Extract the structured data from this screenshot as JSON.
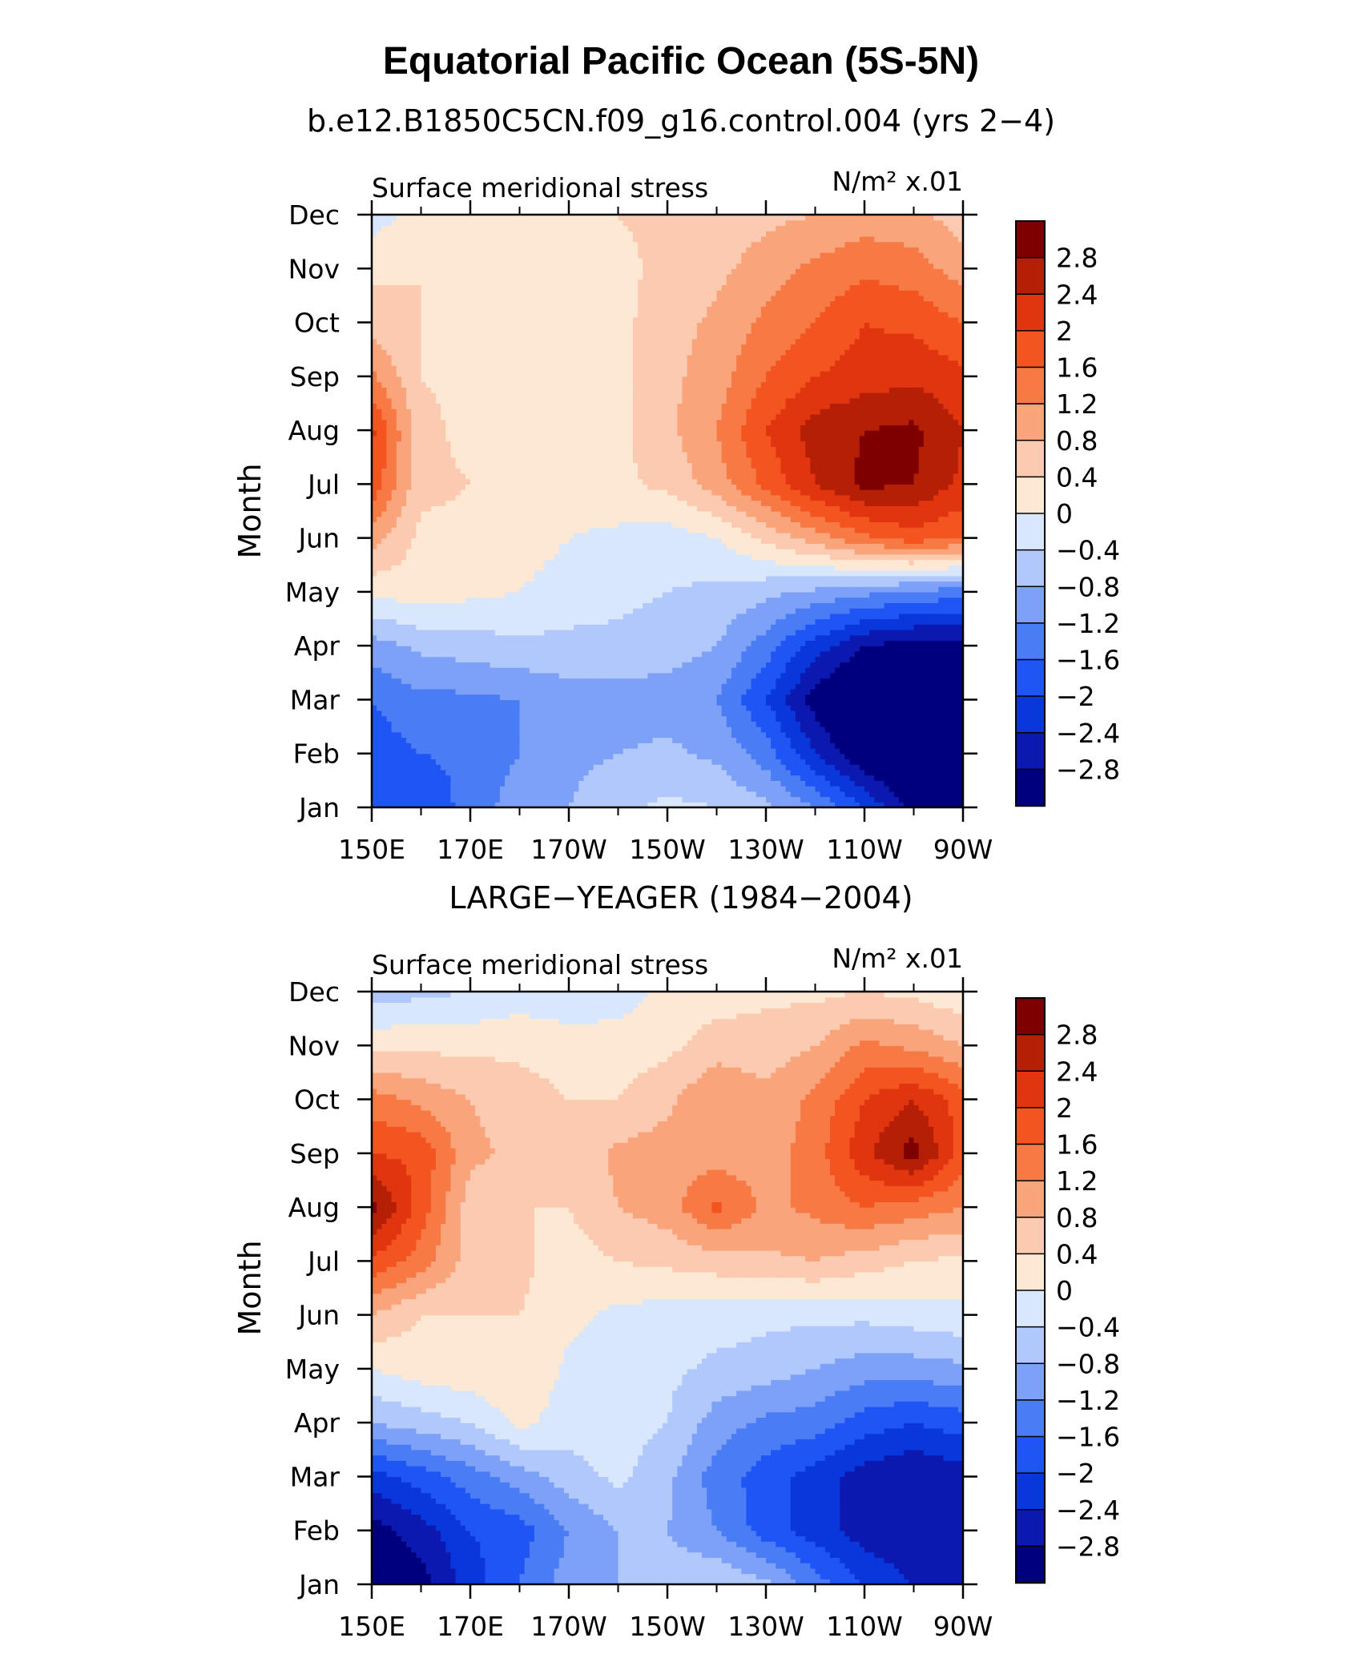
{
  "title": "Equatorial Pacific Ocean (5S-5N)",
  "chart_data": [
    {
      "type": "heatmap",
      "subtitle": "b.e12.B1850C5CN.f09_g16.control.004 (yrs 2−4)",
      "variable": "Surface meridional stress",
      "units": "N/m² x.01",
      "xlabel": "",
      "ylabel": "Month",
      "x_ticks": [
        "150E",
        "170E",
        "170W",
        "150W",
        "130W",
        "110W",
        "90W"
      ],
      "y_ticks": [
        "Jan",
        "Feb",
        "Mar",
        "Apr",
        "May",
        "Jun",
        "Jul",
        "Aug",
        "Sep",
        "Oct",
        "Nov",
        "Dec"
      ],
      "x_values": [
        150,
        160,
        170,
        180,
        190,
        200,
        210,
        220,
        230,
        240,
        250,
        260,
        270
      ],
      "xlim": [
        150,
        270
      ],
      "ylim": [
        1,
        12
      ],
      "values": [
        [
          -1.6,
          -2.0,
          -1.4,
          -1.0,
          -0.8,
          -0.5,
          -0.3,
          -0.4,
          -0.7,
          -1.2,
          -2.0,
          -3.0,
          -3.4
        ],
        [
          -1.8,
          -1.6,
          -1.5,
          -1.2,
          -0.9,
          -0.8,
          -0.7,
          -0.9,
          -1.4,
          -2.4,
          -3.2,
          -3.6,
          -3.6
        ],
        [
          -1.6,
          -1.3,
          -1.3,
          -1.2,
          -1.0,
          -1.0,
          -1.0,
          -1.2,
          -2.0,
          -3.0,
          -3.6,
          -3.8,
          -3.8
        ],
        [
          -1.0,
          -0.7,
          -0.6,
          -0.5,
          -0.5,
          -0.5,
          -0.6,
          -0.8,
          -1.4,
          -2.2,
          -2.8,
          -3.0,
          -3.0
        ],
        [
          0.1,
          0.2,
          0.1,
          0.0,
          -0.2,
          -0.3,
          -0.4,
          -0.5,
          -0.7,
          -0.9,
          -1.1,
          -1.3,
          -1.4
        ],
        [
          1.0,
          0.3,
          0.3,
          0.2,
          0.0,
          -0.1,
          -0.2,
          0.0,
          0.5,
          1.0,
          1.5,
          1.8,
          1.6
        ],
        [
          1.9,
          0.5,
          0.4,
          0.3,
          0.2,
          0.3,
          0.5,
          1.0,
          1.7,
          2.4,
          2.9,
          2.8,
          2.3
        ],
        [
          2.1,
          0.5,
          0.3,
          0.2,
          0.1,
          0.3,
          0.7,
          1.2,
          2.0,
          2.6,
          2.8,
          2.9,
          2.4
        ],
        [
          1.3,
          0.4,
          0.3,
          0.2,
          0.1,
          0.3,
          0.7,
          1.0,
          1.6,
          2.0,
          2.2,
          2.3,
          2.1
        ],
        [
          0.6,
          0.4,
          0.3,
          0.1,
          0.1,
          0.3,
          0.6,
          0.9,
          1.3,
          1.6,
          2.0,
          1.9,
          1.6
        ],
        [
          0.3,
          0.4,
          0.3,
          0.1,
          0.0,
          0.3,
          0.5,
          0.7,
          1.0,
          1.3,
          1.5,
          1.4,
          1.0
        ],
        [
          -0.2,
          0.2,
          0.2,
          0.1,
          0.0,
          0.4,
          0.5,
          0.5,
          0.7,
          0.8,
          1.0,
          0.9,
          0.6
        ]
      ]
    },
    {
      "type": "heatmap",
      "subtitle": "LARGE−YEAGER (1984−2004)",
      "variable": "Surface meridional stress",
      "units": "N/m² x.01",
      "xlabel": "",
      "ylabel": "Month",
      "x_ticks": [
        "150E",
        "170E",
        "170W",
        "150W",
        "130W",
        "110W",
        "90W"
      ],
      "y_ticks": [
        "Jan",
        "Feb",
        "Mar",
        "Apr",
        "May",
        "Jun",
        "Jul",
        "Aug",
        "Sep",
        "Oct",
        "Nov",
        "Dec"
      ],
      "x_values": [
        150,
        160,
        170,
        180,
        190,
        200,
        210,
        220,
        230,
        240,
        250,
        260,
        270
      ],
      "xlim": [
        150,
        270
      ],
      "ylim": [
        1,
        12
      ],
      "values": [
        [
          -3.2,
          -3.0,
          -2.2,
          -1.6,
          -1.0,
          -0.8,
          -0.6,
          -0.4,
          -0.7,
          -1.4,
          -2.0,
          -2.4,
          -2.4
        ],
        [
          -3.0,
          -2.6,
          -2.0,
          -1.8,
          -1.2,
          -0.8,
          -0.8,
          -1.2,
          -1.8,
          -2.2,
          -2.6,
          -2.8,
          -2.6
        ],
        [
          -2.2,
          -1.8,
          -1.4,
          -1.0,
          -0.6,
          -0.3,
          -0.7,
          -1.4,
          -1.8,
          -2.2,
          -2.6,
          -2.8,
          -2.6
        ],
        [
          -0.8,
          -0.6,
          -0.4,
          0.1,
          -0.2,
          -0.2,
          -0.4,
          -1.0,
          -1.3,
          -1.4,
          -1.8,
          -2.0,
          -1.8
        ],
        [
          0.0,
          0.2,
          0.3,
          0.4,
          -0.1,
          -0.1,
          -0.3,
          -0.5,
          -0.6,
          -0.8,
          -1.0,
          -1.0,
          -0.9
        ],
        [
          0.8,
          0.4,
          0.4,
          0.4,
          0.1,
          -0.1,
          -0.2,
          -0.2,
          -0.3,
          -0.3,
          -0.3,
          -0.2,
          -0.1
        ],
        [
          1.9,
          1.4,
          0.6,
          0.5,
          0.2,
          0.4,
          0.5,
          0.6,
          0.7,
          0.8,
          0.6,
          0.4,
          0.3
        ],
        [
          3.0,
          1.8,
          0.6,
          0.4,
          0.4,
          0.8,
          1.0,
          1.7,
          1.1,
          1.3,
          1.6,
          1.4,
          1.2
        ],
        [
          2.0,
          1.9,
          0.9,
          0.7,
          0.5,
          0.9,
          1.0,
          1.0,
          1.0,
          1.4,
          2.3,
          3.0,
          1.8
        ],
        [
          1.4,
          1.1,
          0.8,
          0.6,
          0.4,
          0.4,
          0.7,
          1.2,
          0.9,
          1.3,
          2.0,
          2.4,
          1.8
        ],
        [
          0.3,
          0.3,
          0.3,
          0.3,
          0.2,
          0.2,
          0.3,
          0.6,
          0.6,
          0.8,
          1.3,
          1.1,
          0.8
        ],
        [
          -0.6,
          -0.5,
          -0.4,
          -0.2,
          -0.3,
          -0.2,
          0.1,
          0.2,
          0.3,
          0.3,
          0.4,
          0.3,
          0.1
        ]
      ]
    }
  ],
  "colorbar": {
    "levels": [
      -2.8,
      -2.4,
      -2.0,
      -1.6,
      -1.2,
      -0.8,
      -0.4,
      0,
      0.4,
      0.8,
      1.2,
      1.6,
      2.0,
      2.4,
      2.8
    ],
    "labels": [
      "−2.8",
      "−2.4",
      "−2",
      "−1.6",
      "−1.2",
      "−0.8",
      "−0.4",
      "0",
      "0.4",
      "0.8",
      "1.2",
      "1.6",
      "2",
      "2.4",
      "2.8"
    ],
    "colors": [
      "#00007f",
      "#0c19b0",
      "#0a37db",
      "#1f55f5",
      "#4a7cf5",
      "#7ea1f8",
      "#b0c8fb",
      "#d8e7fc",
      "#fde8d4",
      "#fbcab0",
      "#f9a47b",
      "#f77a45",
      "#f4541f",
      "#e0350e",
      "#b51f06",
      "#7f0000"
    ]
  }
}
